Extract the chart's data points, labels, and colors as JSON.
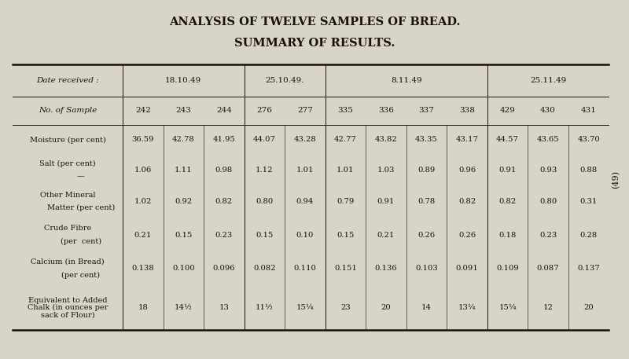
{
  "title1": "ANALYSIS OF TWELVE SAMPLES OF BREAD.",
  "title2": "SUMMARY OF RESULTS.",
  "bg_color": "#d8d4c8",
  "table_bg": "#e8e4d8",
  "figsize": [
    8.0,
    4.57
  ],
  "dpi": 100,
  "date_groups": [
    {
      "label": "18.10.49",
      "span": 3
    },
    {
      "label": "25.10.49.",
      "span": 2
    },
    {
      "label": "8.11.49",
      "span": 4
    },
    {
      "label": "25.11.49",
      "span": 3
    }
  ],
  "samples": [
    "242",
    "243",
    "244",
    "276",
    "277",
    "335",
    "336",
    "337",
    "338",
    "429",
    "430",
    "431"
  ],
  "rows": [
    {
      "label": [
        "Moisture (per cent)"
      ],
      "values": [
        "36.59",
        "42.78",
        "41.95",
        "44.07",
        "43.28",
        "42.77",
        "43.82",
        "43.35",
        "43.17",
        "44.57",
        "43.65",
        "43.70"
      ]
    },
    {
      "label": [
        "Salt (per cent)",
        "—"
      ],
      "values": [
        "1.06",
        "1.11",
        "0.98",
        "1.12",
        "1.01",
        "1.01",
        "1.03",
        "0.89",
        "0.96",
        "0.91",
        "0.93",
        "0.88"
      ]
    },
    {
      "label": [
        "Other Mineral",
        "Matter (per cent)"
      ],
      "values": [
        "1.02",
        "0.92",
        "0.82",
        "0.80",
        "0.94",
        "0.79",
        "0.91",
        "0.78",
        "0.82",
        "0.82",
        "0.80",
        "0.31"
      ]
    },
    {
      "label": [
        "Crude Fibre",
        "(per  cent)"
      ],
      "values": [
        "0.21",
        "0.15",
        "0.23",
        "0.15",
        "0.10",
        "0.15",
        "0.21",
        "0.26",
        "0.26",
        "0.18",
        "0.23",
        "0.28"
      ]
    },
    {
      "label": [
        "Calcium (in Bread)",
        "(per cent)"
      ],
      "values": [
        "0.138",
        "0.100",
        "0.096",
        "0.082",
        "0.110",
        "0.151",
        "0.136",
        "0.103",
        "0.091",
        "0.109",
        "0.087",
        "0.137"
      ]
    },
    {
      "label": [
        "Equivalent to Added",
        "Chalk (in ounces per",
        "sack of Flour)"
      ],
      "values": [
        "18",
        "14½",
        "13",
        "11½",
        "15¼",
        "23",
        "20",
        "14",
        "13¼",
        "15¼",
        "12",
        "20"
      ]
    }
  ],
  "side_label": "(49)",
  "font_color": "#1a1008",
  "line_color": "#1a1008"
}
